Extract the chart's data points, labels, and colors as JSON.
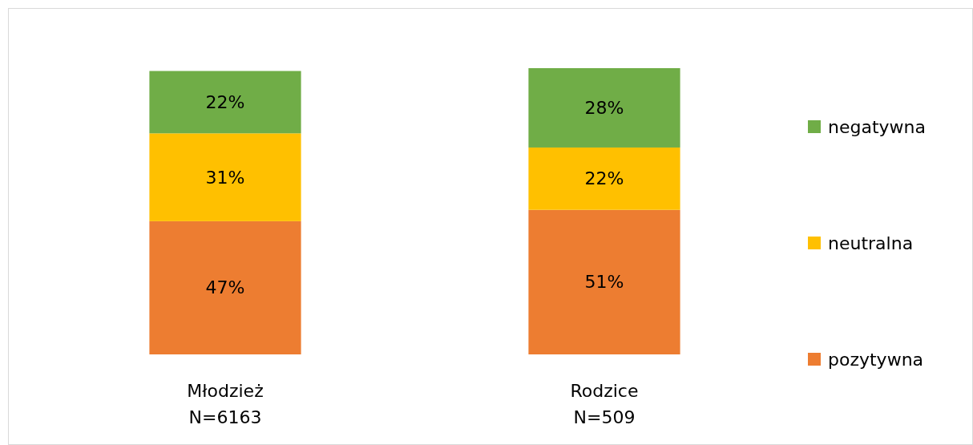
{
  "chart_data": {
    "type": "bar",
    "stacked": true,
    "categories": [
      "Młodzież\nN=6163",
      "Rodzice\nN=509"
    ],
    "series": [
      {
        "name": "pozytywna",
        "color": "#ed7d31",
        "values": [
          47,
          51
        ],
        "value_labels": [
          "47%",
          "51%"
        ]
      },
      {
        "name": "neutralna",
        "color": "#ffc000",
        "values": [
          31,
          22
        ],
        "value_labels": [
          "31%",
          "22%"
        ]
      },
      {
        "name": "negatywna",
        "color": "#70ad47",
        "values": [
          22,
          28
        ],
        "value_labels": [
          "22%",
          "28%"
        ]
      }
    ],
    "legend": "right"
  }
}
